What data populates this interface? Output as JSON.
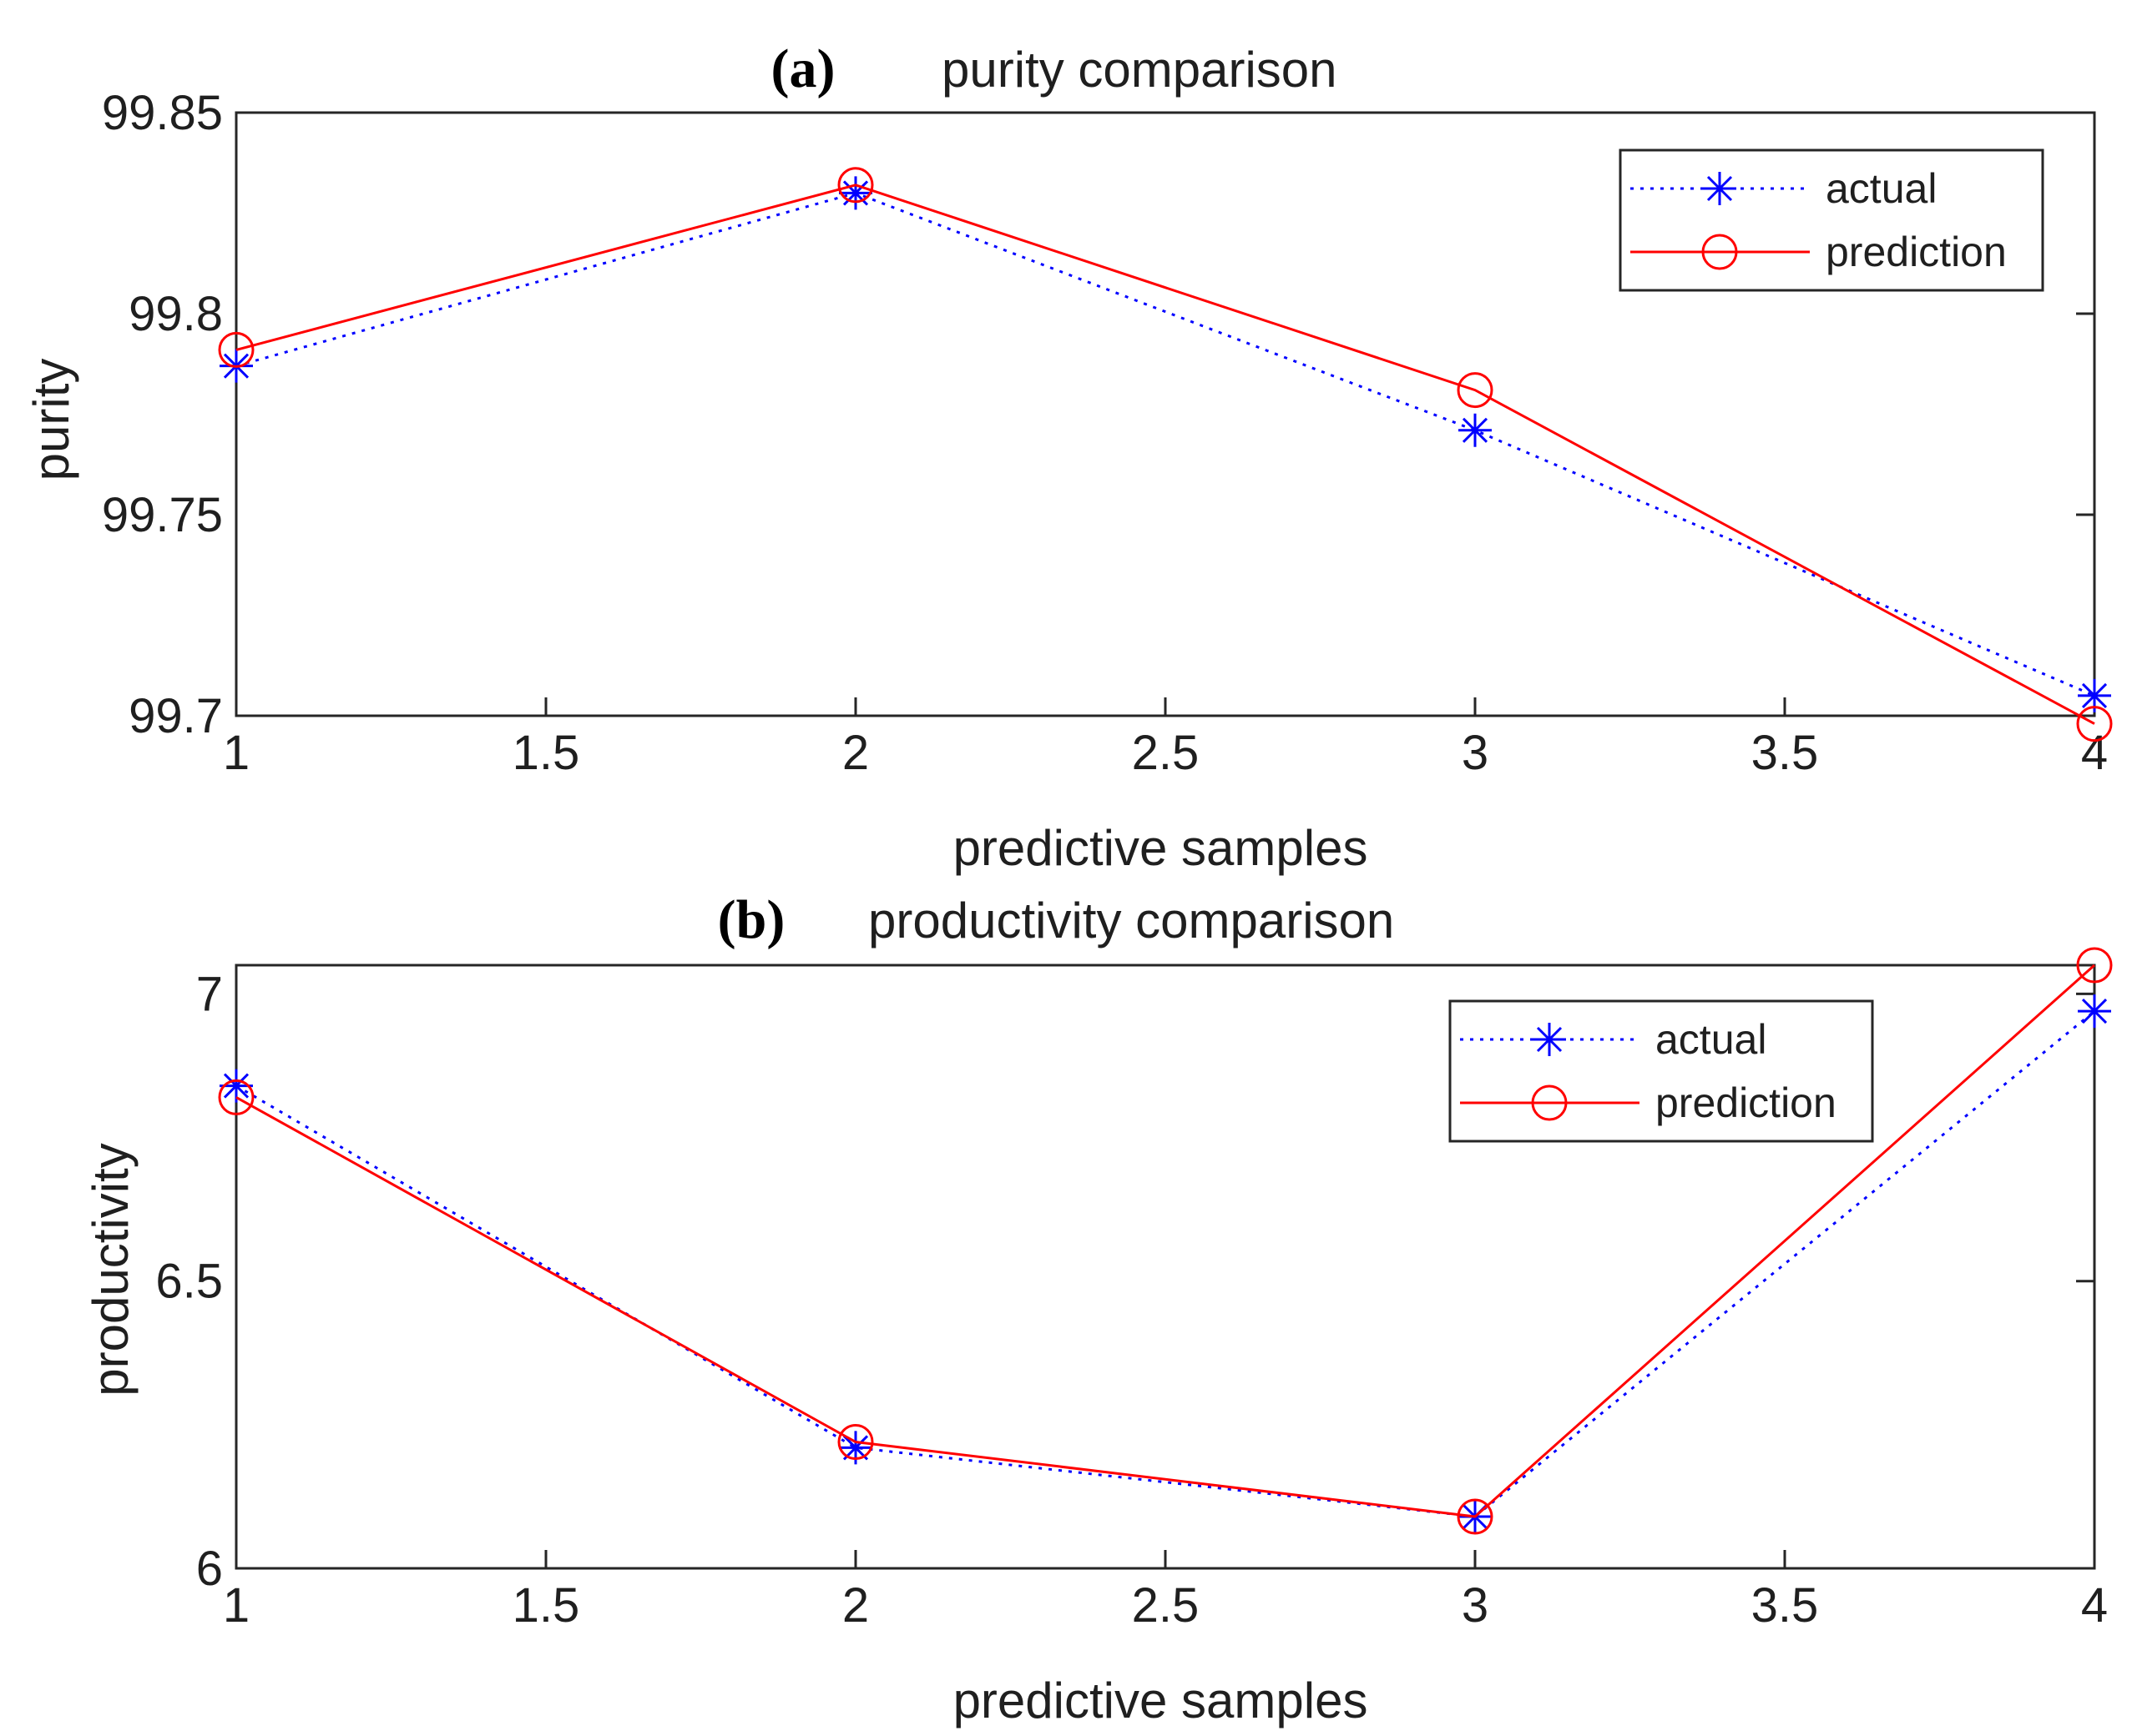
{
  "chart_data": [
    {
      "type": "line",
      "panel_label": "(a)",
      "title": "purity comparison",
      "xlabel": "predictive samples",
      "ylabel": "purity",
      "xlim": [
        1,
        4
      ],
      "ylim": [
        99.7,
        99.85
      ],
      "xticks": [
        1,
        1.5,
        2,
        2.5,
        3,
        3.5,
        4
      ],
      "xtick_labels": [
        "1",
        "1.5",
        "2",
        "2.5",
        "3",
        "3.5",
        "4"
      ],
      "yticks": [
        99.7,
        99.75,
        99.8,
        99.85
      ],
      "ytick_labels": [
        "99.7",
        "99.75",
        "99.8",
        "99.85"
      ],
      "legend_position": "top-right",
      "x": [
        1,
        2,
        3,
        4
      ],
      "series": [
        {
          "name": "actual",
          "values": [
            99.787,
            99.83,
            99.771,
            99.705
          ],
          "color": "#0000ff",
          "marker": "asterisk",
          "line": "dotted"
        },
        {
          "name": "prediction",
          "values": [
            99.791,
            99.832,
            99.781,
            99.698
          ],
          "color": "#ff0000",
          "marker": "circle",
          "line": "solid"
        }
      ]
    },
    {
      "type": "line",
      "panel_label": "(b)",
      "title": "productivity comparison",
      "xlabel": "predictive samples",
      "ylabel": "productivity",
      "xlim": [
        1,
        4
      ],
      "ylim": [
        6,
        7.05
      ],
      "xticks": [
        1,
        1.5,
        2,
        2.5,
        3,
        3.5,
        4
      ],
      "xtick_labels": [
        "1",
        "1.5",
        "2",
        "2.5",
        "3",
        "3.5",
        "4"
      ],
      "yticks": [
        6,
        6.5,
        7
      ],
      "ytick_labels": [
        "6",
        "6.5",
        "7"
      ],
      "legend_position": "top-right",
      "x": [
        1,
        2,
        3,
        4
      ],
      "series": [
        {
          "name": "actual",
          "values": [
            6.84,
            6.21,
            6.09,
            6.97
          ],
          "color": "#0000ff",
          "marker": "asterisk",
          "line": "dotted"
        },
        {
          "name": "prediction",
          "values": [
            6.82,
            6.22,
            6.09,
            7.05
          ],
          "color": "#ff0000",
          "marker": "circle",
          "line": "solid"
        }
      ]
    }
  ]
}
